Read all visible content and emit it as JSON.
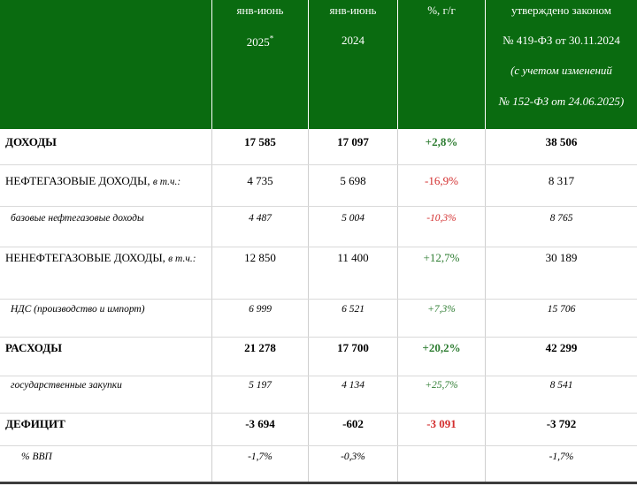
{
  "colors": {
    "header_bg": "#0a6b10",
    "positive": "#2e7d32",
    "negative": "#d32f2f"
  },
  "header": {
    "col1": {
      "line1": "янв-июнь",
      "line2": "2025",
      "mark": "*"
    },
    "col2": {
      "line1": "янв-июнь",
      "line2": "2024"
    },
    "col3": {
      "line1": "%, г/г"
    },
    "col4": {
      "line1": "утверждено законом",
      "line2": "№ 419-ФЗ от 30.11.2024",
      "line3": "(с учетом изменений",
      "line4": "№ 152-ФЗ от 24.06.2025)"
    }
  },
  "rows": [
    {
      "label": "ДОХОДЫ",
      "v2025": "17 585",
      "v2024": "17 097",
      "yoy": "+2,8%",
      "law": "38 506"
    },
    {
      "label": "НЕФТЕГАЗОВЫЕ ДОХОДЫ,",
      "label_note": "в т.ч.:",
      "v2025": "4 735",
      "v2024": "5 698",
      "yoy": "-16,9%",
      "law": "8 317"
    },
    {
      "label": "базовые нефтегазовые доходы",
      "v2025": "4 487",
      "v2024": "5 004",
      "yoy": "-10,3%",
      "law": "8 765"
    },
    {
      "label": "НЕНЕФТЕГАЗОВЫЕ ДОХОДЫ,",
      "label_note": "в т.ч.:",
      "v2025": "12 850",
      "v2024": "11 400",
      "yoy": "+12,7%",
      "law": "30 189"
    },
    {
      "label": "НДС (производство и импорт)",
      "v2025": "6 999",
      "v2024": "6 521",
      "yoy": "+7,3%",
      "law": "15 706"
    },
    {
      "label": "РАСХОДЫ",
      "v2025": "21 278",
      "v2024": "17 700",
      "yoy": "+20,2%",
      "law": "42 299"
    },
    {
      "label": "государственные закупки",
      "v2025": "5 197",
      "v2024": "4 134",
      "yoy": "+25,7%",
      "law": "8 541"
    },
    {
      "label": "ДЕФИЦИТ",
      "v2025": "-3 694",
      "v2024": "-602",
      "yoy": "-3 091",
      "law": "-3 792"
    },
    {
      "label": "% ВВП",
      "v2025": "-1,7%",
      "v2024": "-0,3%",
      "yoy": "",
      "law": "-1,7%"
    }
  ]
}
